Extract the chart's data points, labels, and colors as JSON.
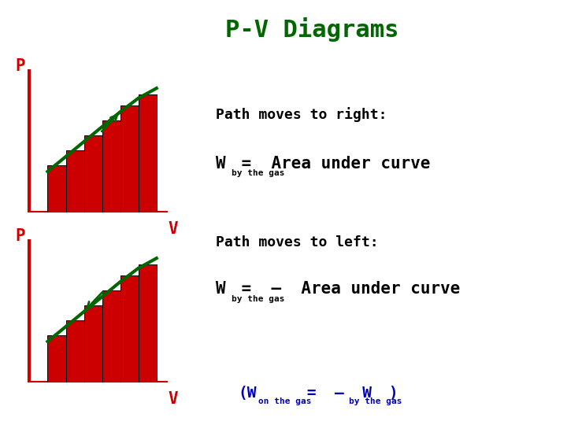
{
  "title": "P-V Diagrams",
  "title_color": "#006600",
  "title_fontsize": 22,
  "bg_color": "#ffffff",
  "axis_color": "#cc0000",
  "bar_color": "#cc0000",
  "curve_color": "#006600",
  "label_color": "#cc0000",
  "text_color": "#000000",
  "blue_color": "#0000bb",
  "bars_x": [
    1.0,
    1.5,
    2.0,
    2.5,
    3.0,
    3.5
  ],
  "bar_width": 0.5,
  "bar_heights_top": [
    0.38,
    0.5,
    0.62,
    0.74,
    0.86,
    0.95
  ],
  "bar_heights_bot": [
    0.38,
    0.5,
    0.62,
    0.74,
    0.86,
    0.95
  ],
  "curve_x": [
    1.0,
    1.5,
    2.0,
    2.5,
    3.0,
    3.5,
    4.0
  ],
  "curve_y": [
    0.33,
    0.45,
    0.57,
    0.69,
    0.81,
    0.92,
    1.0
  ],
  "xlim": [
    0,
    5
  ],
  "ylim": [
    0,
    1.3
  ],
  "text1_line1": "Path moves to right:",
  "text1_line2_W": "W",
  "text1_line2_sub": "by the gas",
  "text1_line2_rest": " =  Area under curve",
  "text2_line1": "Path moves to left:",
  "text2_line2_W": "W",
  "text2_line2_sub": "by the gas",
  "text2_line2_rest": " =  –  Area under curve",
  "bottom_open": "(W",
  "bottom_sub1": "on the gas",
  "bottom_eq": " =  –  W",
  "bottom_sub2": "by the gas",
  "bottom_close": ")"
}
